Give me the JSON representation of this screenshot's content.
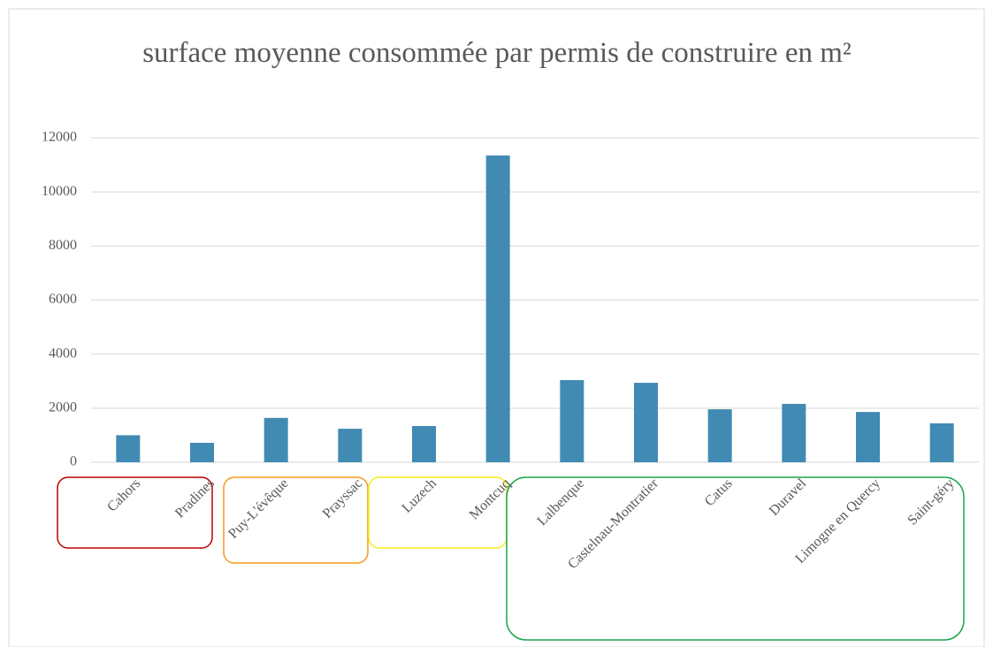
{
  "chart_data": {
    "type": "bar",
    "title": "surface moyenne consommée par permis de construire en m²",
    "categories": [
      "Cahors",
      "Pradines",
      "Puy-L'évêque",
      "Prayssac",
      "Luzech",
      "Montcuq",
      "Lalbenque",
      "Castelnau-Montratier",
      "Catus",
      "Duravel",
      "Limogne en Quercy",
      "Saint-géry"
    ],
    "values": [
      1000,
      720,
      1640,
      1240,
      1340,
      11350,
      3040,
      2940,
      1960,
      2160,
      1860,
      1440
    ],
    "color": "#418ab3",
    "ylim": [
      0,
      12000
    ],
    "yticks": [
      0,
      2000,
      4000,
      6000,
      8000,
      10000,
      12000
    ],
    "grid": true
  }
}
